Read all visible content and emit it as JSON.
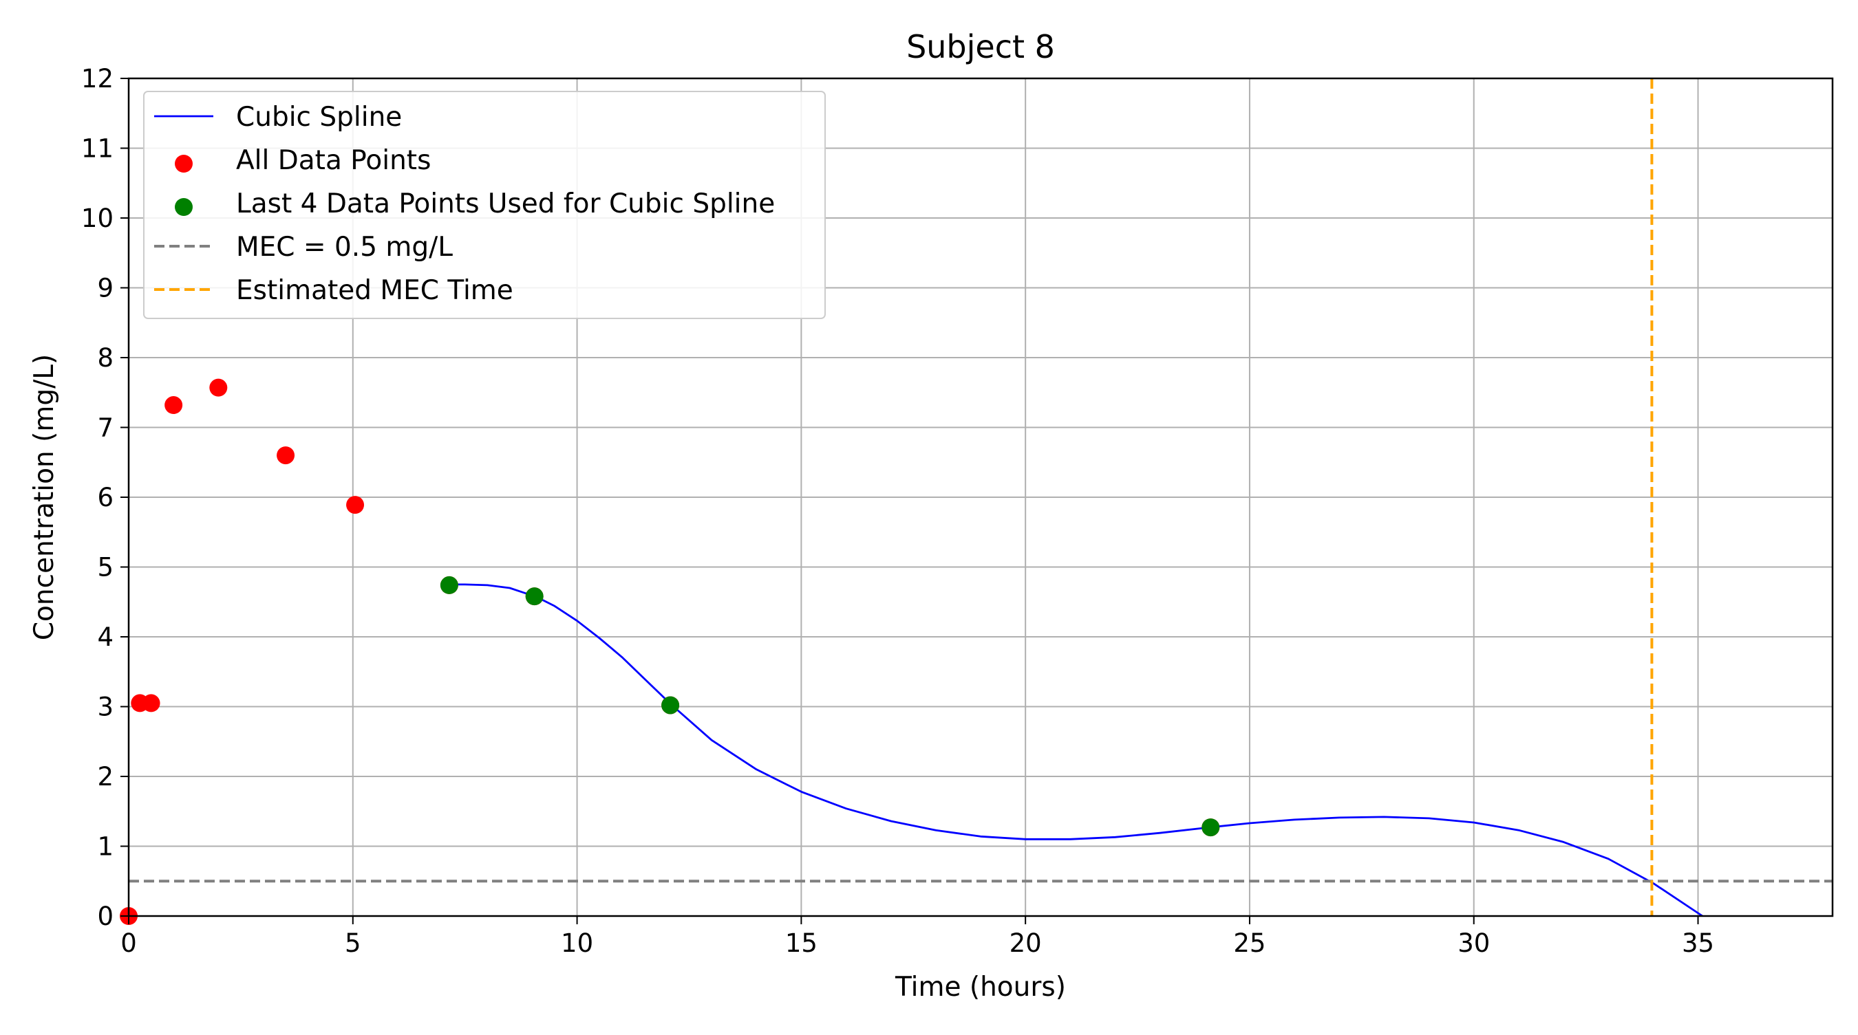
{
  "chart_data": {
    "type": "line",
    "title": "Subject 8",
    "xlabel": "Time (hours)",
    "ylabel": "Concentration (mg/L)",
    "xlim": [
      0,
      38
    ],
    "ylim": [
      0,
      12
    ],
    "xticks": [
      0,
      5,
      10,
      15,
      20,
      25,
      30,
      35
    ],
    "yticks": [
      0,
      1,
      2,
      3,
      4,
      5,
      6,
      7,
      8,
      9,
      10,
      11,
      12
    ],
    "grid": true,
    "legend_position": "top-left",
    "series": [
      {
        "name": "Cubic Spline",
        "kind": "line",
        "color": "#0000ff",
        "x": [
          7.2,
          7.5,
          8.0,
          8.5,
          9.1,
          9.5,
          10.0,
          10.5,
          11.0,
          11.5,
          12.1,
          13.0,
          14.0,
          15.0,
          16.0,
          17.0,
          18.0,
          19.0,
          20.0,
          21.0,
          22.0,
          23.0,
          24.1,
          25.0,
          26.0,
          27.0,
          28.0,
          29.0,
          30.0,
          31.0,
          32.0,
          33.0,
          34.0,
          35.1
        ],
        "y": [
          4.75,
          4.75,
          4.74,
          4.7,
          4.57,
          4.44,
          4.23,
          3.98,
          3.71,
          3.4,
          3.03,
          2.52,
          2.1,
          1.78,
          1.54,
          1.36,
          1.23,
          1.14,
          1.1,
          1.1,
          1.13,
          1.19,
          1.27,
          1.33,
          1.38,
          1.41,
          1.42,
          1.4,
          1.34,
          1.23,
          1.06,
          0.82,
          0.47,
          0.0
        ]
      },
      {
        "name": "All Data Points",
        "kind": "scatter",
        "color": "#ff0000",
        "x": [
          0,
          0.25,
          0.5,
          1.0,
          2.0,
          3.5,
          5.05,
          7.15,
          9.05,
          12.08,
          24.13
        ],
        "y": [
          0.0,
          3.05,
          3.05,
          7.32,
          7.57,
          6.6,
          5.89,
          4.74,
          4.58,
          3.02,
          1.27
        ]
      },
      {
        "name": "Last 4 Data Points Used for Cubic Spline",
        "kind": "scatter",
        "color": "#008000",
        "x": [
          7.15,
          9.05,
          12.08,
          24.13
        ],
        "y": [
          4.74,
          4.58,
          3.02,
          1.27
        ]
      },
      {
        "name": "MEC = 0.5 mg/L",
        "kind": "hline",
        "color": "#808080",
        "y": 0.5
      },
      {
        "name": "Estimated MEC Time",
        "kind": "vline",
        "color": "#ffa500",
        "x": 33.97
      }
    ]
  }
}
